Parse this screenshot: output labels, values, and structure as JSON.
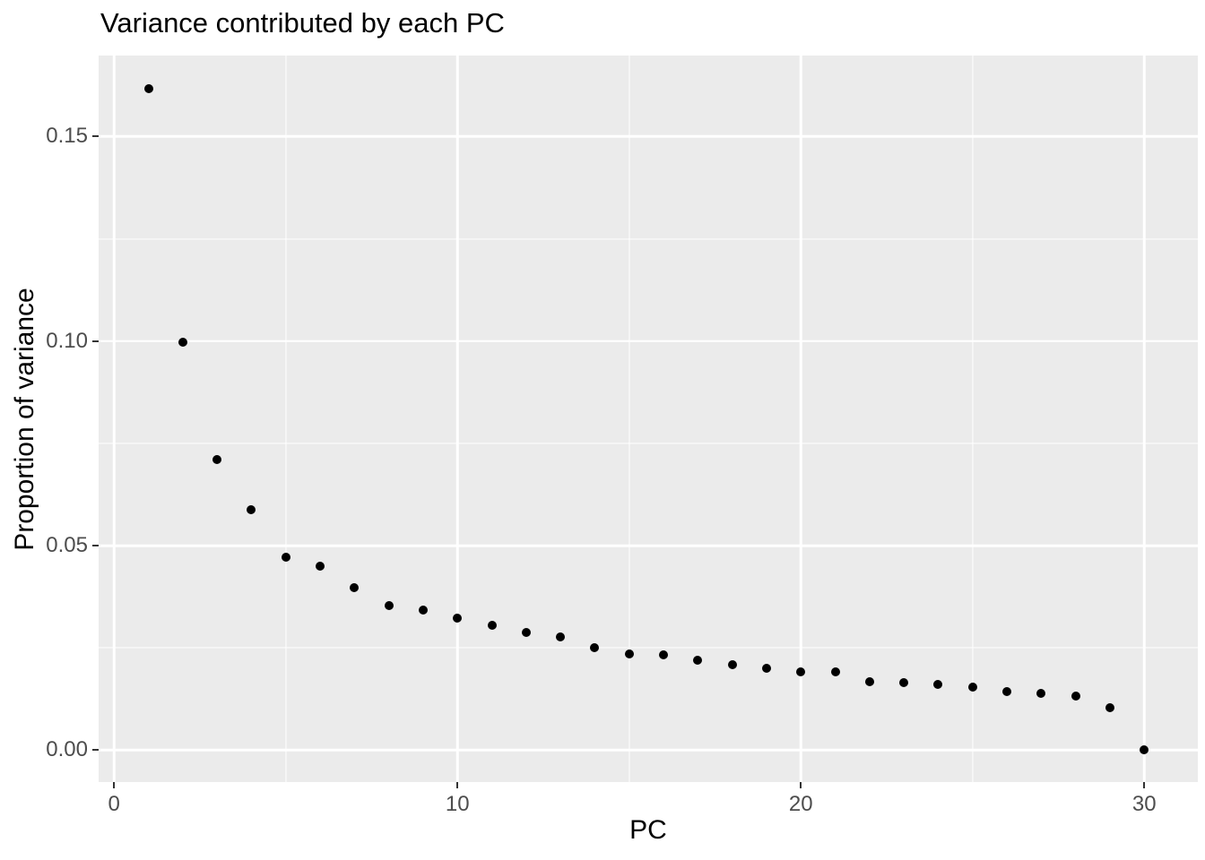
{
  "title": "Variance contributed by each PC",
  "chart_data": {
    "type": "scatter",
    "title": "Variance contributed by each PC",
    "xlabel": "PC",
    "ylabel": "Proportion of variance",
    "x": [
      1,
      2,
      3,
      4,
      5,
      6,
      7,
      8,
      9,
      10,
      11,
      12,
      13,
      14,
      15,
      16,
      17,
      18,
      19,
      20,
      21,
      22,
      23,
      24,
      25,
      26,
      27,
      28,
      29,
      30
    ],
    "y": [
      0.1617,
      0.0997,
      0.0711,
      0.0588,
      0.0472,
      0.045,
      0.0397,
      0.0354,
      0.0343,
      0.0323,
      0.0305,
      0.0288,
      0.0277,
      0.0251,
      0.0235,
      0.0233,
      0.022,
      0.0209,
      0.02,
      0.0192,
      0.0192,
      0.0168,
      0.0166,
      0.0161,
      0.0154,
      0.0143,
      0.0139,
      0.0132,
      0.0104,
      0.0001
    ],
    "xlim": [
      -0.45,
      31.56
    ],
    "ylim": [
      -0.0078,
      0.1698
    ],
    "x_ticks": {
      "values": [
        0,
        10,
        20,
        30
      ],
      "labels": [
        "0",
        "10",
        "20",
        "30"
      ]
    },
    "y_ticks": {
      "values": [
        0,
        0.05,
        0.1,
        0.15
      ],
      "labels": [
        "0.00",
        "0.05",
        "0.10",
        "0.15"
      ]
    },
    "x_minor_gridlines": [
      5,
      15,
      25
    ],
    "y_minor_gridlines": [
      0.025,
      0.075,
      0.125
    ],
    "grid": "major-and-minor",
    "legend_position": "none",
    "colors": {
      "figure_background": "#FFFFFF",
      "panel_background": "#EBEBEB",
      "gridline": "#FFFFFF",
      "point": "#000000",
      "tick_label": "#4D4D4D",
      "tick_mark": "#333333",
      "title_text": "#000000"
    }
  }
}
